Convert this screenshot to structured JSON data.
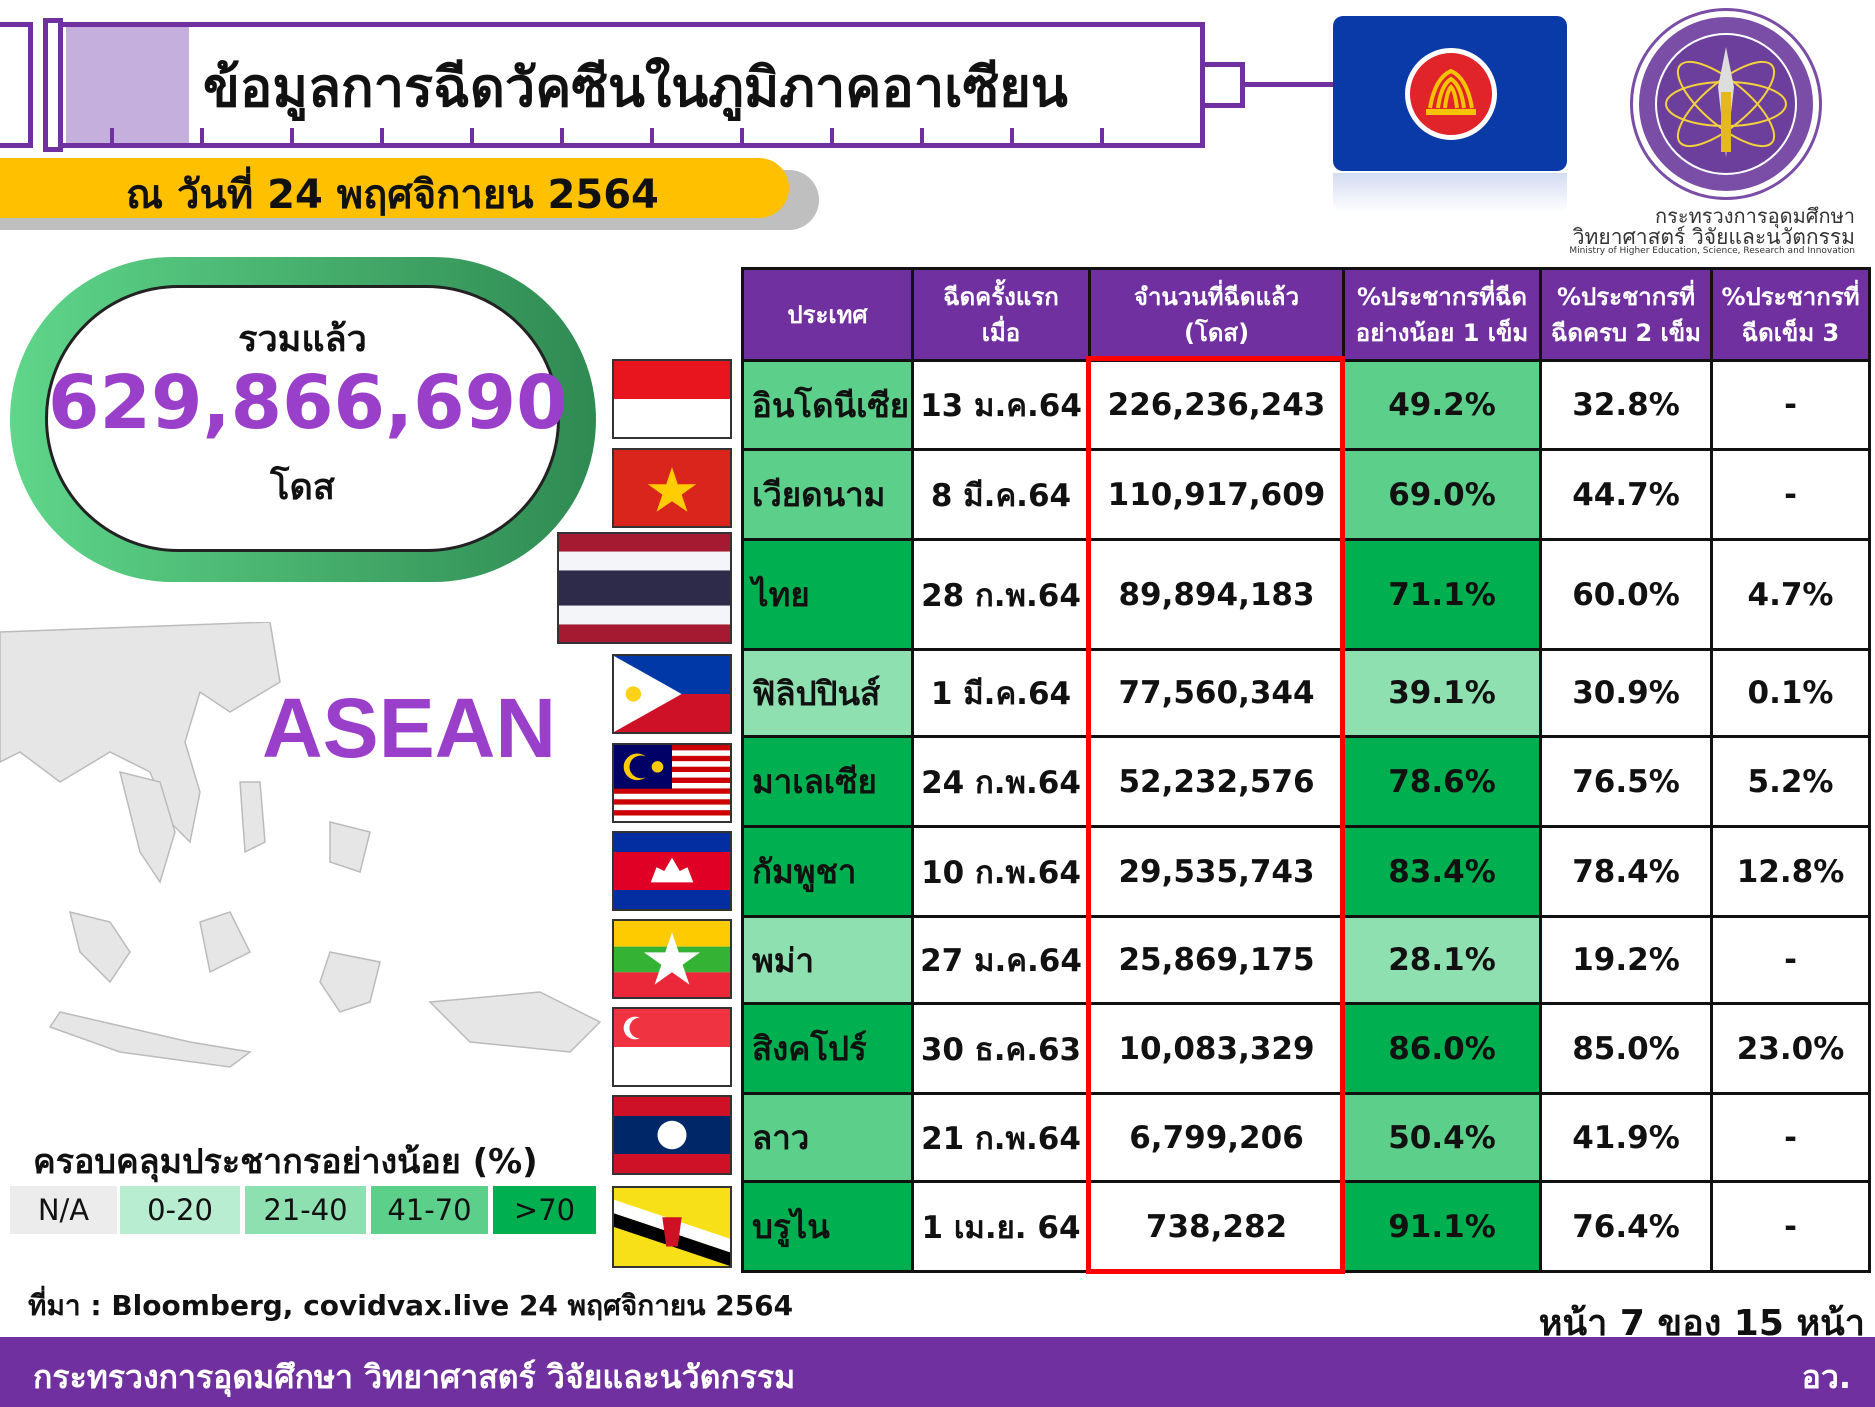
{
  "header": {
    "title": "ข้อมูลการฉีดวัคซีนในภูมิภาคอาเซียน",
    "date": "ณ วันที่ 24 พฤศจิกายน 2564"
  },
  "logo": {
    "line1": "กระทรวงการอุดมศึกษา",
    "line2": "วิทยาศาสตร์ วิจัยและนวัตกรรม",
    "line3": "Ministry of Higher Education, Science, Research and Innovation"
  },
  "total": {
    "label": "รวมแล้ว",
    "value": "629,866,690",
    "unit": "โดส"
  },
  "map": {
    "label": "ASEAN"
  },
  "legend": {
    "title": "ครอบคลุมประชากรอย่างน้อย (%)",
    "items": [
      {
        "label": "N/A",
        "color": "#ececec"
      },
      {
        "label": "0-20",
        "color": "#b9edd1"
      },
      {
        "label": "21-40",
        "color": "#8fe0b0"
      },
      {
        "label": "41-70",
        "color": "#5ccf8a"
      },
      {
        "label": ">70",
        "color": "#00b050"
      }
    ]
  },
  "table": {
    "headers": [
      "ประเทศ",
      "ฉีดครั้งแรก\nเมื่อ",
      "จำนวนที่ฉีดแล้ว\n(โดส)",
      "%ประชากรที่ฉีด\nอย่างน้อย 1 เข็ม",
      "%ประชากรที่\nฉีดครบ 2 เข็ม",
      "%ประชากรที่\nฉีดเข็ม 3"
    ],
    "rows": [
      {
        "country": "อินโดนีเซีย",
        "first": "13 ม.ค.64",
        "doses": "226,236,243",
        "one": "49.2%",
        "two": "32.8%",
        "three": "-",
        "color": "#5ccf8a",
        "flag": "indonesia"
      },
      {
        "country": "เวียดนาม",
        "first": "8 มี.ค.64",
        "doses": "110,917,609",
        "one": "69.0%",
        "two": "44.7%",
        "three": "-",
        "color": "#5ccf8a",
        "flag": "vietnam"
      },
      {
        "country": "ไทย",
        "first": "28 ก.พ.64",
        "doses": "89,894,183",
        "one": "71.1%",
        "two": "60.0%",
        "three": "4.7%",
        "color": "#00b050",
        "flag": "thailand"
      },
      {
        "country": "ฟิลิปปินส์",
        "first": "1 มี.ค.64",
        "doses": "77,560,344",
        "one": "39.1%",
        "two": "30.9%",
        "three": "0.1%",
        "color": "#8fe0b0",
        "flag": "philippines"
      },
      {
        "country": "มาเลเซีย",
        "first": "24 ก.พ.64",
        "doses": "52,232,576",
        "one": "78.6%",
        "two": "76.5%",
        "three": "5.2%",
        "color": "#00b050",
        "flag": "malaysia"
      },
      {
        "country": "กัมพูชา",
        "first": "10 ก.พ.64",
        "doses": "29,535,743",
        "one": "83.4%",
        "two": "78.4%",
        "three": "12.8%",
        "color": "#00b050",
        "flag": "cambodia"
      },
      {
        "country": "พม่า",
        "first": "27 ม.ค.64",
        "doses": "25,869,175",
        "one": "28.1%",
        "two": "19.2%",
        "three": "-",
        "color": "#8fe0b0",
        "flag": "myanmar"
      },
      {
        "country": "สิงคโปร์",
        "first": "30 ธ.ค.63",
        "doses": "10,083,329",
        "one": "86.0%",
        "two": "85.0%",
        "three": "23.0%",
        "color": "#00b050",
        "flag": "singapore"
      },
      {
        "country": "ลาว",
        "first": "21 ก.พ.64",
        "doses": "6,799,206",
        "one": "50.4%",
        "two": "41.9%",
        "three": "-",
        "color": "#5ccf8a",
        "flag": "laos"
      },
      {
        "country": "บรูไน",
        "first": "1 เม.ย. 64",
        "doses": "738,282",
        "one": "91.1%",
        "two": "76.4%",
        "three": "-",
        "color": "#00b050",
        "flag": "brunei"
      }
    ]
  },
  "source": "ที่มา : Bloomberg, covidvax.live 24 พฤศจิกายน 2564",
  "page": "หน้า 7 ของ 15 หน้า",
  "footer": {
    "ministry": "กระทรวงการอุดมศึกษา วิทยาศาสตร์ วิจัยและนวัตกรรม",
    "abbr": "อว."
  },
  "colors": {
    "brand": "#7030a0",
    "highlight": "#ff0000",
    "banner": "#ffc000"
  }
}
